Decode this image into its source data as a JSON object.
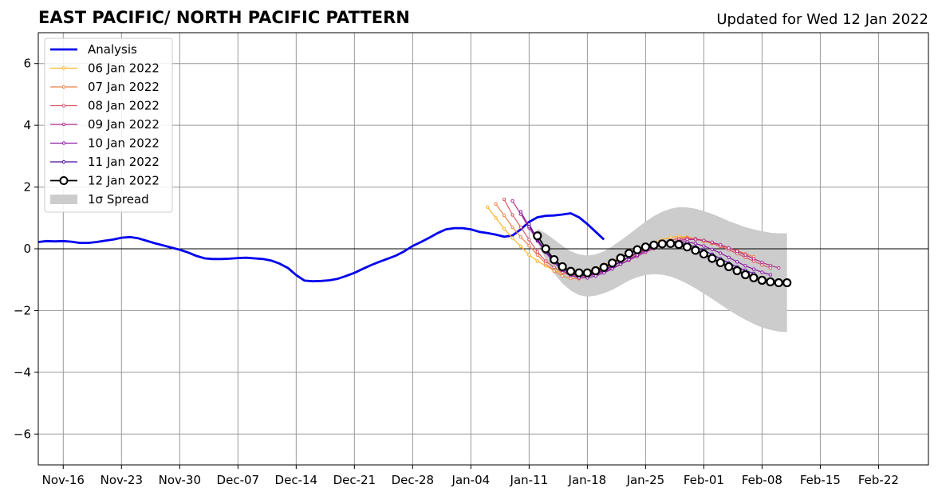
{
  "chart_data": {
    "type": "line",
    "title": "EAST PACIFIC/ NORTH PACIFIC PATTERN",
    "subtitle": "Updated for Wed 12 Jan 2022",
    "xlabel": "",
    "ylabel": "",
    "ylim": [
      -7,
      7
    ],
    "xlim": [
      "2021-11-13",
      "2022-02-28"
    ],
    "grid": true,
    "legend_position": "top-left",
    "x_ticks": [
      {
        "date": "2021-11-16",
        "label": "Nov-16"
      },
      {
        "date": "2021-11-23",
        "label": "Nov-23"
      },
      {
        "date": "2021-11-30",
        "label": "Nov-30"
      },
      {
        "date": "2021-12-07",
        "label": "Dec-07"
      },
      {
        "date": "2021-12-14",
        "label": "Dec-14"
      },
      {
        "date": "2021-12-21",
        "label": "Dec-21"
      },
      {
        "date": "2021-12-28",
        "label": "Dec-28"
      },
      {
        "date": "2022-01-04",
        "label": "Jan-04"
      },
      {
        "date": "2022-01-11",
        "label": "Jan-11"
      },
      {
        "date": "2022-01-18",
        "label": "Jan-18"
      },
      {
        "date": "2022-01-25",
        "label": "Jan-25"
      },
      {
        "date": "2022-02-01",
        "label": "Feb-01"
      },
      {
        "date": "2022-02-08",
        "label": "Feb-08"
      },
      {
        "date": "2022-02-15",
        "label": "Feb-15"
      },
      {
        "date": "2022-02-22",
        "label": "Feb-22"
      }
    ],
    "y_ticks": [
      {
        "value": 6,
        "label": "6"
      },
      {
        "value": 4,
        "label": "4"
      },
      {
        "value": 2,
        "label": "2"
      },
      {
        "value": 0,
        "label": "0"
      },
      {
        "value": -2,
        "label": "−2"
      },
      {
        "value": -4,
        "label": "−4"
      },
      {
        "value": -6,
        "label": "−6"
      }
    ],
    "series": [
      {
        "name": "Analysis",
        "color": "#0000ee",
        "style": "analysis",
        "start_date": "2021-11-13",
        "values": [
          0.22,
          0.25,
          0.24,
          0.25,
          0.23,
          0.19,
          0.19,
          0.22,
          0.26,
          0.3,
          0.36,
          0.38,
          0.34,
          0.26,
          0.18,
          0.11,
          0.04,
          -0.03,
          -0.12,
          -0.23,
          -0.31,
          -0.33,
          -0.33,
          -0.32,
          -0.3,
          -0.29,
          -0.31,
          -0.33,
          -0.38,
          -0.48,
          -0.62,
          -0.85,
          -1.03,
          -1.05,
          -1.04,
          -1.02,
          -0.97,
          -0.88,
          -0.78,
          -0.65,
          -0.53,
          -0.42,
          -0.32,
          -0.22,
          -0.08,
          0.09,
          0.22,
          0.36,
          0.51,
          0.63,
          0.67,
          0.67,
          0.63,
          0.55,
          0.51,
          0.46,
          0.39,
          0.43,
          0.63,
          0.87,
          1.02,
          1.07,
          1.08,
          1.11,
          1.15,
          1.02,
          0.8,
          0.55,
          0.3
        ]
      },
      {
        "name": "06 Jan 2022",
        "color": "#fcb426",
        "style": "forecast",
        "start_date": "2022-01-06",
        "values": [
          1.35,
          1.0,
          0.65,
          0.35,
          0.08,
          -0.2,
          -0.4,
          -0.55,
          -0.7,
          -0.78,
          -0.8,
          -0.77,
          -0.72,
          -0.64,
          -0.52,
          -0.4,
          -0.27,
          -0.15,
          -0.03,
          0.08,
          0.2,
          0.3,
          0.37,
          0.4,
          0.38,
          0.32,
          0.24,
          0.17,
          0.1,
          0.02,
          -0.08,
          -0.2
        ]
      },
      {
        "name": "07 Jan 2022",
        "color": "#f3814a",
        "style": "forecast",
        "start_date": "2022-01-07",
        "values": [
          1.45,
          1.08,
          0.7,
          0.38,
          0.1,
          -0.2,
          -0.48,
          -0.72,
          -0.88,
          -0.96,
          -0.97,
          -0.9,
          -0.8,
          -0.68,
          -0.55,
          -0.42,
          -0.29,
          -0.16,
          -0.04,
          0.08,
          0.19,
          0.28,
          0.34,
          0.36,
          0.33,
          0.27,
          0.19,
          0.11,
          0.03,
          -0.06,
          -0.16,
          -0.26
        ]
      },
      {
        "name": "08 Jan 2022",
        "color": "#dc5563",
        "style": "forecast",
        "start_date": "2022-01-08",
        "values": [
          1.6,
          1.1,
          0.7,
          0.3,
          -0.1,
          -0.4,
          -0.6,
          -0.77,
          -0.86,
          -0.88,
          -0.84,
          -0.76,
          -0.66,
          -0.53,
          -0.4,
          -0.28,
          -0.15,
          -0.02,
          0.1,
          0.2,
          0.28,
          0.33,
          0.34,
          0.32,
          0.26,
          0.18,
          0.08,
          -0.03,
          -0.15,
          -0.28,
          -0.4,
          -0.52,
          -0.62
        ]
      },
      {
        "name": "09 Jan 2022",
        "color": "#b42c8b",
        "style": "forecast",
        "start_date": "2022-01-09",
        "values": [
          1.55,
          1.12,
          0.68,
          0.25,
          -0.1,
          -0.4,
          -0.64,
          -0.8,
          -0.88,
          -0.88,
          -0.83,
          -0.74,
          -0.63,
          -0.5,
          -0.37,
          -0.24,
          -0.11,
          0.01,
          0.12,
          0.21,
          0.27,
          0.3,
          0.3,
          0.27,
          0.21,
          0.13,
          0.03,
          -0.08,
          -0.2,
          -0.32,
          -0.44,
          -0.54,
          -0.62
        ]
      },
      {
        "name": "10 Jan 2022",
        "color": "#8b1aa6",
        "style": "forecast",
        "start_date": "2022-01-10",
        "values": [
          1.2,
          0.72,
          0.28,
          -0.12,
          -0.45,
          -0.7,
          -0.86,
          -0.94,
          -0.94,
          -0.88,
          -0.78,
          -0.65,
          -0.5,
          -0.35,
          -0.2,
          -0.06,
          0.06,
          0.15,
          0.21,
          0.23,
          0.22,
          0.17,
          0.09,
          -0.02,
          -0.14,
          -0.28,
          -0.42,
          -0.55,
          -0.66,
          -0.76,
          -0.84
        ]
      },
      {
        "name": "11 Jan 2022",
        "color": "#4d0a9e",
        "style": "forecast",
        "start_date": "2022-01-11",
        "values": [
          0.8,
          0.3,
          -0.08,
          -0.4,
          -0.65,
          -0.8,
          -0.86,
          -0.86,
          -0.8,
          -0.7,
          -0.57,
          -0.42,
          -0.27,
          -0.12,
          0.0,
          0.1,
          0.16,
          0.19,
          0.18,
          0.14,
          0.06,
          -0.05,
          -0.18,
          -0.32,
          -0.46,
          -0.59,
          -0.7,
          -0.8
        ]
      },
      {
        "name": "12 Jan 2022",
        "color": "#000000",
        "style": "latest",
        "start_date": "2022-01-12",
        "values": [
          0.42,
          0.0,
          -0.35,
          -0.58,
          -0.73,
          -0.78,
          -0.78,
          -0.71,
          -0.6,
          -0.46,
          -0.3,
          -0.15,
          -0.03,
          0.06,
          0.12,
          0.16,
          0.17,
          0.14,
          0.06,
          -0.05,
          -0.17,
          -0.31,
          -0.45,
          -0.58,
          -0.71,
          -0.84,
          -0.94,
          -1.02,
          -1.07,
          -1.1,
          -1.1
        ]
      }
    ],
    "spread": {
      "name": "1σ Spread",
      "color": "#cccccc",
      "start_date": "2022-01-12",
      "upper": [
        0.65,
        0.5,
        0.3,
        0.1,
        -0.08,
        -0.18,
        -0.22,
        -0.18,
        -0.08,
        0.08,
        0.27,
        0.47,
        0.68,
        0.88,
        1.06,
        1.2,
        1.3,
        1.35,
        1.34,
        1.3,
        1.22,
        1.13,
        1.02,
        0.9,
        0.8,
        0.7,
        0.63,
        0.57,
        0.52,
        0.5,
        0.5
      ],
      "lower": [
        0.2,
        -0.35,
        -0.8,
        -1.12,
        -1.35,
        -1.5,
        -1.55,
        -1.52,
        -1.44,
        -1.33,
        -1.18,
        -1.03,
        -0.92,
        -0.85,
        -0.82,
        -0.84,
        -0.9,
        -1.0,
        -1.13,
        -1.28,
        -1.45,
        -1.62,
        -1.8,
        -1.98,
        -2.15,
        -2.3,
        -2.43,
        -2.55,
        -2.63,
        -2.68,
        -2.7
      ]
    }
  }
}
